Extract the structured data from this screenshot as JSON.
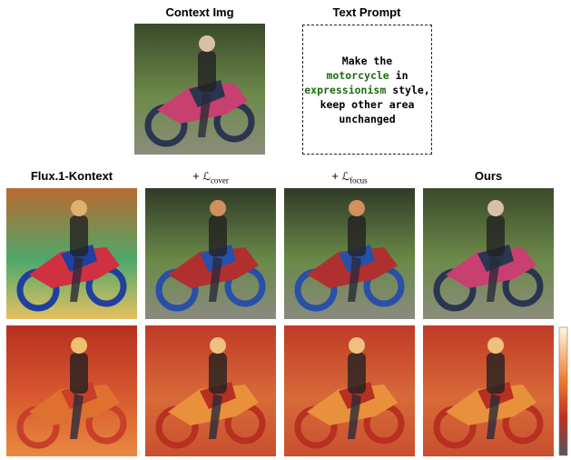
{
  "header": {
    "context_label": "Context Img",
    "prompt_label": "Text Prompt"
  },
  "prompt": {
    "lines": [
      [
        {
          "text": "Make the"
        }
      ],
      [
        {
          "text": "motorcycle",
          "highlight": true
        },
        {
          "text": " in"
        }
      ],
      [
        {
          "text": "expressionism",
          "highlight": true
        },
        {
          "text": " style,"
        }
      ],
      [
        {
          "text": "keep other area"
        }
      ],
      [
        {
          "text": "unchanged"
        }
      ]
    ],
    "highlight_color": "#1f6b12"
  },
  "columns": [
    {
      "label": "Flux.1-Kontext"
    },
    {
      "prefix": "+",
      "symbol": "ℒ",
      "subscript": "cover"
    },
    {
      "prefix": "+",
      "symbol": "ℒ",
      "subscript": "focus"
    },
    {
      "label": "Ours"
    }
  ]
}
